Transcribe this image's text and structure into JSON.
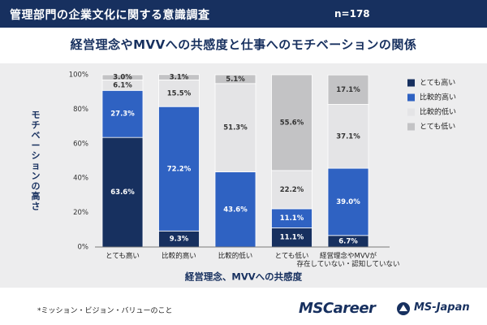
{
  "header": {
    "title": "管理部門の企業文化に関する意識調査",
    "sample_size": "n=178"
  },
  "colors": {
    "header_bg": "#17305f",
    "title": "#17305f",
    "panel_bg": "#ededee",
    "series": [
      "#17305f",
      "#2f62c2",
      "#e4e4e6",
      "#c3c3c5"
    ]
  },
  "footnote": "*ミッション・ビジョン・バリューのこと",
  "brands": {
    "mscareer": "MSCareer",
    "msjapan": "MS-Japan"
  },
  "chart_data": {
    "type": "bar",
    "stacked": true,
    "title": "経営理念やMVVへの共感度と仕事へのモチベーションの関係",
    "xlabel": "経営理念、MVVへの共感度",
    "ylabel": "モチベーションの高さ",
    "ylim": [
      0,
      100
    ],
    "y_ticks": [
      "0%",
      "20%",
      "40%",
      "60%",
      "80%",
      "100%"
    ],
    "categories": [
      [
        "とても高い"
      ],
      [
        "比較的高い"
      ],
      [
        "比較的低い"
      ],
      [
        "とても低い"
      ],
      [
        "経営理念やMVVが",
        "存在していない・認知していない"
      ]
    ],
    "series": [
      {
        "name": "とても高い",
        "values": [
          63.6,
          9.3,
          0,
          11.1,
          6.7
        ],
        "labels": [
          "63.6%",
          "9.3%",
          "",
          "11.1%",
          "6.7%"
        ]
      },
      {
        "name": "比較的高い",
        "values": [
          27.3,
          72.2,
          43.6,
          11.1,
          39.0
        ],
        "labels": [
          "27.3%",
          "72.2%",
          "43.6%",
          "11.1%",
          "39.0%"
        ]
      },
      {
        "name": "比較的低い",
        "values": [
          6.1,
          15.5,
          51.3,
          22.2,
          37.1
        ],
        "labels": [
          "6.1%",
          "15.5%",
          "51.3%",
          "22.2%",
          "37.1%"
        ]
      },
      {
        "name": "とても低い",
        "values": [
          3.0,
          3.1,
          5.1,
          55.6,
          17.1
        ],
        "labels": [
          "3.0%",
          "3.1%",
          "5.1%",
          "55.6%",
          "17.1%"
        ]
      }
    ],
    "legend_position": "right"
  }
}
